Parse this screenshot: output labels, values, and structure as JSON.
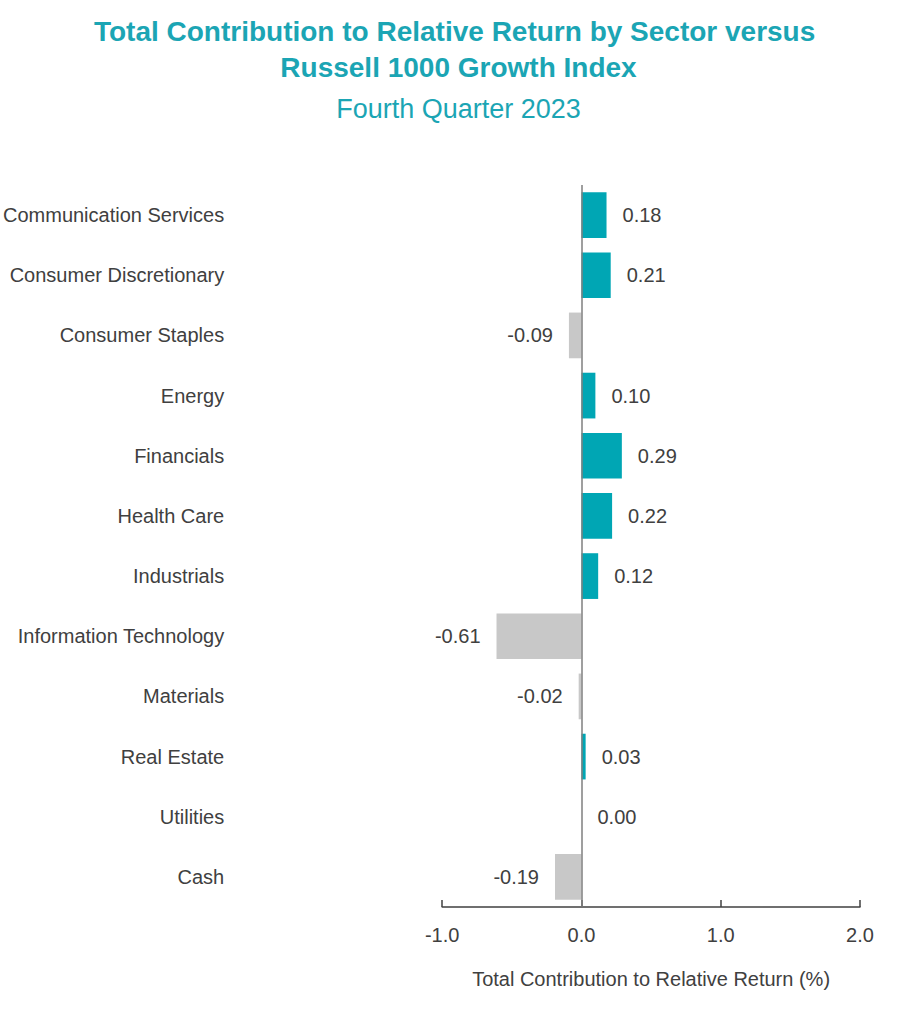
{
  "chart_data": {
    "type": "bar",
    "orientation": "horizontal",
    "title": "Total Contribution to Relative Return by Sector versus Russell 1000 Growth Index",
    "subtitle": "Fourth Quarter 2023",
    "x_label": "Total Contribution to Relative Return (%)",
    "categories": [
      "Communication Services",
      "Consumer Discretionary",
      "Consumer Staples",
      "Energy",
      "Financials",
      "Health Care",
      "Industrials",
      "Information Technology",
      "Materials",
      "Real Estate",
      "Utilities",
      "Cash"
    ],
    "values": [
      0.18,
      0.21,
      -0.09,
      0.1,
      0.29,
      0.22,
      0.12,
      -0.61,
      -0.02,
      0.03,
      0.0,
      -0.19
    ],
    "value_labels": [
      "0.18",
      "0.21",
      "-0.09",
      "0.10",
      "0.29",
      "0.22",
      "0.12",
      "-0.61",
      "-0.02",
      "0.03",
      "0.00",
      "-0.19"
    ],
    "colors": [
      "#00a6b4",
      "#00a6b4",
      "#c8c8c8",
      "#00a6b4",
      "#00a6b4",
      "#00a6b4",
      "#00a6b4",
      "#c8c8c8",
      "#c8c8c8",
      "#00a6b4",
      "#00a6b4",
      "#c8c8c8"
    ],
    "xlim": [
      -1.0,
      2.0
    ],
    "xticks": [
      {
        "value": -1,
        "label": "-1.0"
      },
      {
        "value": 0,
        "label": "0.0"
      },
      {
        "value": 1,
        "label": "1.0"
      },
      {
        "value": 2,
        "label": "2.0"
      }
    ],
    "data_labels": true,
    "grid": false
  }
}
